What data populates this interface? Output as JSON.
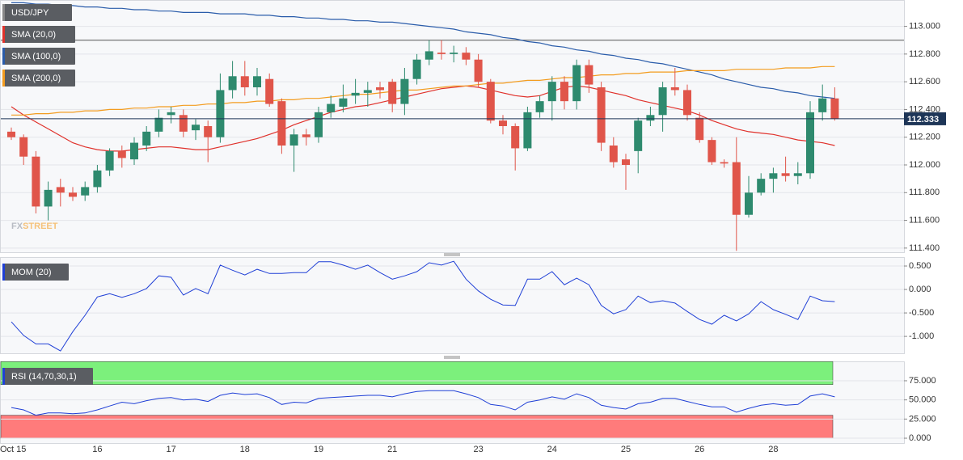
{
  "chart_data": [
    {
      "type": "candlestick",
      "title": "USD/JPY",
      "categories": [
        "Oct 15",
        null,
        null,
        null,
        null,
        null,
        null,
        "16",
        null,
        null,
        null,
        null,
        null,
        "17",
        null,
        null,
        null,
        null,
        null,
        "18",
        null,
        null,
        null,
        null,
        null,
        "19",
        null,
        null,
        null,
        null,
        null,
        "21",
        null,
        null,
        null,
        null,
        null,
        null,
        "23",
        null,
        null,
        null,
        null,
        null,
        "24",
        null,
        null,
        null,
        null,
        null,
        "25",
        null,
        null,
        null,
        null,
        null,
        "26",
        null,
        null,
        null,
        null,
        null,
        "28",
        null,
        null,
        null,
        null,
        null
      ],
      "series": [
        {
          "name": "USD/JPY",
          "up_color": "#2e8a6e",
          "down_color": "#e0554a",
          "open": [
            112.24,
            112.2,
            112.06,
            111.7,
            111.84,
            111.8,
            111.78,
            111.84,
            111.96,
            112.1,
            112.04,
            112.14,
            112.24,
            112.36,
            112.36,
            112.25,
            112.28,
            112.2,
            112.54,
            112.64,
            112.56,
            112.62,
            112.46,
            112.14,
            112.22,
            112.2,
            112.38,
            112.42,
            112.5,
            112.52,
            112.56,
            112.6,
            112.44,
            112.62,
            112.76,
            112.81,
            112.8,
            112.81,
            112.76,
            112.6,
            112.32,
            112.28,
            112.12,
            112.38,
            112.46,
            112.6,
            112.46,
            112.72,
            112.56,
            112.14,
            112.04,
            112.1,
            112.32,
            112.36,
            112.56,
            112.54,
            112.34,
            112.18,
            112.02,
            112.02,
            111.64,
            111.8,
            111.9,
            111.94,
            111.92,
            111.94,
            112.38,
            112.48
          ],
          "high": [
            112.27,
            112.22,
            112.1,
            111.88,
            111.9,
            111.84,
            111.88,
            112.0,
            112.12,
            112.14,
            112.2,
            112.28,
            112.4,
            112.42,
            112.4,
            112.33,
            112.32,
            112.66,
            112.75,
            112.75,
            112.7,
            112.66,
            112.48,
            112.26,
            112.26,
            112.42,
            112.5,
            112.58,
            112.62,
            112.6,
            112.6,
            112.62,
            112.7,
            112.8,
            112.9,
            112.9,
            112.86,
            112.85,
            112.8,
            112.62,
            112.36,
            112.3,
            112.42,
            112.5,
            112.64,
            112.64,
            112.76,
            112.76,
            112.6,
            112.2,
            112.08,
            112.34,
            112.42,
            112.6,
            112.7,
            112.58,
            112.38,
            112.2,
            112.04,
            112.2,
            111.92,
            111.94,
            111.98,
            112.06,
            112.02,
            112.46,
            112.58,
            112.56
          ],
          "low": [
            112.18,
            112.0,
            111.65,
            111.6,
            111.7,
            111.74,
            111.74,
            111.8,
            111.92,
            111.98,
            112.0,
            112.1,
            112.2,
            112.3,
            112.2,
            112.18,
            112.02,
            112.16,
            112.48,
            112.5,
            112.5,
            112.42,
            112.08,
            111.95,
            112.14,
            112.16,
            112.34,
            112.38,
            112.44,
            112.42,
            112.48,
            112.38,
            112.36,
            112.58,
            112.72,
            112.76,
            112.74,
            112.72,
            112.56,
            112.3,
            112.22,
            111.96,
            112.1,
            112.34,
            112.32,
            112.4,
            112.4,
            112.52,
            112.1,
            111.98,
            111.82,
            111.94,
            112.28,
            112.24,
            112.5,
            112.32,
            112.16,
            112.0,
            111.98,
            111.38,
            111.62,
            111.78,
            111.8,
            111.88,
            111.86,
            111.9,
            112.32,
            112.32
          ],
          "close": [
            112.2,
            112.06,
            111.7,
            111.82,
            111.8,
            111.77,
            111.84,
            111.96,
            112.1,
            112.05,
            112.16,
            112.24,
            112.34,
            112.38,
            112.24,
            112.29,
            112.2,
            112.54,
            112.64,
            112.56,
            112.64,
            112.44,
            112.14,
            112.22,
            112.2,
            112.38,
            112.44,
            112.48,
            112.52,
            112.54,
            112.54,
            112.44,
            112.62,
            112.76,
            112.82,
            112.8,
            112.81,
            112.76,
            112.6,
            112.32,
            112.28,
            112.12,
            112.38,
            112.46,
            112.6,
            112.46,
            112.72,
            112.58,
            112.16,
            112.02,
            112.0,
            112.32,
            112.36,
            112.56,
            112.54,
            112.36,
            112.18,
            112.02,
            112.01,
            111.64,
            111.8,
            111.9,
            111.94,
            111.92,
            111.94,
            112.38,
            112.48,
            112.333
          ]
        }
      ],
      "overlays": [
        {
          "name": "SMA (20,0)",
          "color": "#e0312b",
          "values": [
            112.42,
            112.36,
            112.31,
            112.26,
            112.21,
            112.16,
            112.13,
            112.11,
            112.1,
            112.1,
            112.11,
            112.12,
            112.13,
            112.13,
            112.12,
            112.11,
            112.11,
            112.13,
            112.15,
            112.17,
            112.19,
            112.22,
            112.25,
            112.29,
            112.32,
            112.35,
            112.38,
            112.4,
            112.42,
            112.43,
            112.45,
            112.47,
            112.49,
            112.51,
            112.53,
            112.55,
            112.56,
            112.57,
            112.56,
            112.54,
            112.52,
            112.5,
            112.49,
            112.5,
            112.53,
            112.56,
            112.57,
            112.56,
            112.54,
            112.52,
            112.5,
            112.47,
            112.45,
            112.43,
            112.41,
            112.39,
            112.36,
            112.32,
            112.29,
            112.26,
            112.24,
            112.23,
            112.22,
            112.2,
            112.18,
            112.17,
            112.16,
            112.14
          ]
        },
        {
          "name": "SMA (100,0)",
          "color": "#2a5caa",
          "values": [
            113.17,
            113.17,
            113.16,
            113.16,
            113.15,
            113.15,
            113.14,
            113.14,
            113.13,
            113.13,
            113.12,
            113.12,
            113.11,
            113.11,
            113.1,
            113.1,
            113.1,
            113.09,
            113.09,
            113.09,
            113.08,
            113.08,
            113.07,
            113.07,
            113.06,
            113.06,
            113.05,
            113.05,
            113.04,
            113.04,
            113.03,
            113.03,
            113.02,
            113.01,
            113.0,
            112.99,
            112.98,
            112.96,
            112.95,
            112.94,
            112.92,
            112.91,
            112.89,
            112.88,
            112.86,
            112.85,
            112.83,
            112.82,
            112.8,
            112.79,
            112.77,
            112.76,
            112.74,
            112.73,
            112.71,
            112.69,
            112.67,
            112.65,
            112.62,
            112.6,
            112.58,
            112.56,
            112.55,
            112.53,
            112.52,
            112.5,
            112.49,
            112.48
          ]
        },
        {
          "name": "SMA (200,0)",
          "color": "#f39c1f",
          "values": [
            112.36,
            112.36,
            112.37,
            112.37,
            112.38,
            112.38,
            112.39,
            112.39,
            112.4,
            112.4,
            112.41,
            112.41,
            112.42,
            112.42,
            112.43,
            112.43,
            112.44,
            112.44,
            112.45,
            112.45,
            112.46,
            112.46,
            112.47,
            112.47,
            112.48,
            112.48,
            112.49,
            112.5,
            112.51,
            112.51,
            112.52,
            112.53,
            112.54,
            112.54,
            112.55,
            112.56,
            112.57,
            112.57,
            112.58,
            112.59,
            112.59,
            112.6,
            112.61,
            112.61,
            112.62,
            112.63,
            112.63,
            112.64,
            112.65,
            112.65,
            112.66,
            112.66,
            112.67,
            112.67,
            112.67,
            112.68,
            112.68,
            112.68,
            112.68,
            112.69,
            112.69,
            112.69,
            112.69,
            112.7,
            112.7,
            112.7,
            112.71,
            112.71
          ]
        }
      ],
      "hlines": [
        {
          "value": 112.9,
          "color": "#555555"
        }
      ],
      "last_price": {
        "value": 112.333,
        "label": "112.333",
        "color": "#1d3557"
      },
      "watermark": [
        "FX",
        "STREET"
      ],
      "ylim": [
        111.37,
        113.19
      ],
      "yticks": [
        {
          "value": 113,
          "label": "113.000"
        },
        {
          "value": 112.8,
          "label": "112.800"
        },
        {
          "value": 112.6,
          "label": "112.600"
        },
        {
          "value": 112.4,
          "label": "112.400"
        },
        {
          "value": 112.2,
          "label": "112.200"
        },
        {
          "value": 112,
          "label": "112.000"
        },
        {
          "value": 111.8,
          "label": "111.800"
        },
        {
          "value": 111.6,
          "label": "111.600"
        },
        {
          "value": 111.4,
          "label": "111.400"
        }
      ],
      "grid": true
    },
    {
      "type": "line",
      "title": "MOM (20)",
      "color": "#1f3fd6",
      "values": [
        -0.69,
        -0.98,
        -1.16,
        -1.16,
        -1.31,
        -0.9,
        -0.55,
        -0.16,
        -0.09,
        -0.17,
        -0.09,
        0.02,
        0.29,
        0.26,
        -0.12,
        0.02,
        -0.09,
        0.52,
        0.41,
        0.31,
        0.43,
        0.34,
        0.34,
        0.36,
        0.36,
        0.59,
        0.59,
        0.52,
        0.43,
        0.52,
        0.36,
        0.22,
        0.29,
        0.38,
        0.57,
        0.52,
        0.6,
        0.22,
        -0.03,
        -0.21,
        -0.33,
        -0.34,
        0.22,
        0.22,
        0.38,
        0.1,
        0.24,
        0.1,
        -0.34,
        -0.52,
        -0.43,
        -0.14,
        -0.28,
        -0.24,
        -0.29,
        -0.47,
        -0.64,
        -0.74,
        -0.55,
        -0.67,
        -0.52,
        -0.26,
        -0.43,
        -0.53,
        -0.64,
        -0.14,
        -0.24,
        -0.26
      ],
      "ylim": [
        -1.36,
        0.69
      ],
      "yticks": [
        {
          "value": 0.5,
          "label": "0.500"
        },
        {
          "value": 0,
          "label": "0.000"
        },
        {
          "value": -0.5,
          "label": "-0.500"
        },
        {
          "value": -1,
          "label": "-1.000"
        }
      ],
      "grid": true
    },
    {
      "type": "line",
      "title": "RSI (14,70,30,1)",
      "color": "#1f3fd6",
      "values": [
        40,
        37,
        30,
        33,
        33,
        32,
        33,
        37,
        42,
        47,
        45,
        49,
        52,
        53,
        50,
        51,
        48,
        56,
        59,
        57,
        58,
        53,
        44,
        47,
        46,
        52,
        53,
        54,
        55,
        56,
        56,
        54,
        58,
        61,
        62,
        62,
        62,
        58,
        53,
        44,
        42,
        37,
        47,
        50,
        54,
        51,
        58,
        53,
        43,
        40,
        38,
        45,
        47,
        52,
        52,
        48,
        44,
        41,
        41,
        34,
        39,
        43,
        45,
        43,
        44,
        55,
        58,
        54
      ],
      "zones": [
        {
          "from": 70,
          "to": 100,
          "color": "#7cf07c"
        },
        {
          "from": 0,
          "to": 30,
          "color": "#ff7b7b"
        }
      ],
      "ylim": [
        -6.3,
        100.3
      ],
      "yticks": [
        {
          "value": 75,
          "label": "75.000"
        },
        {
          "value": 50,
          "label": "50.000"
        },
        {
          "value": 25,
          "label": "25.000"
        },
        {
          "value": 0,
          "label": "0.000"
        }
      ],
      "grid": true
    }
  ]
}
